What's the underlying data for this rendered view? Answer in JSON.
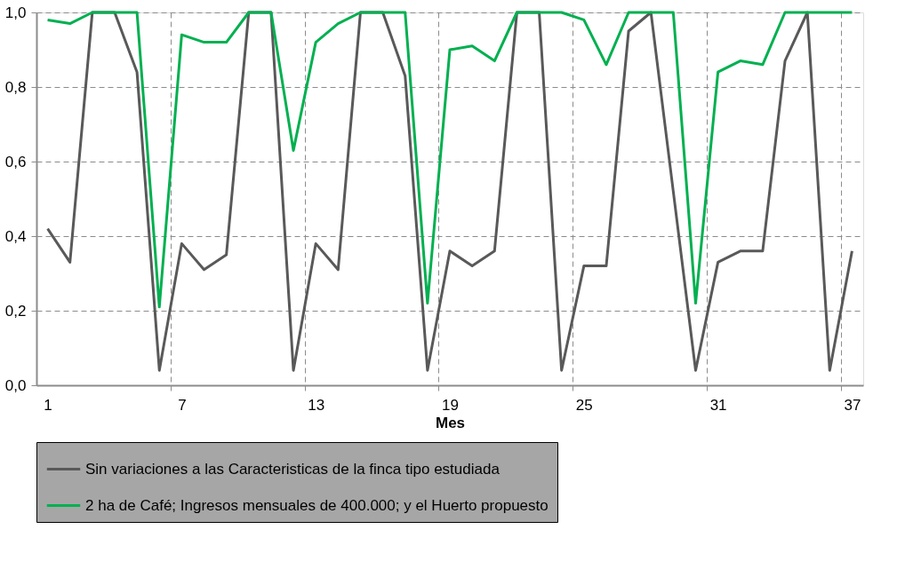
{
  "chart_data": {
    "type": "line",
    "xlabel": "Mes",
    "x": [
      1,
      2,
      3,
      4,
      5,
      6,
      7,
      8,
      9,
      10,
      11,
      12,
      13,
      14,
      15,
      16,
      17,
      18,
      19,
      20,
      21,
      22,
      23,
      24,
      25,
      26,
      27,
      28,
      29,
      30,
      31,
      32,
      33,
      34,
      35,
      36,
      37
    ],
    "xlim": [
      0.5,
      37.5
    ],
    "xticks": [
      1,
      7,
      13,
      19,
      25,
      31,
      37,
      {
        "value": 6.5,
        "label": null
      },
      {
        "value": 12.5,
        "label": null
      },
      {
        "value": 18.5,
        "label": null
      },
      {
        "value": 24.5,
        "label": null
      },
      {
        "value": 30.5,
        "label": null
      },
      {
        "value": 36.5,
        "label": null
      }
    ],
    "ylim": [
      0,
      1
    ],
    "yticks": [
      {
        "value": 0,
        "label": "0,0"
      },
      {
        "value": 0.2,
        "label": "0,2"
      },
      {
        "value": 0.4,
        "label": "0,4"
      },
      {
        "value": 0.6,
        "label": "0,6"
      },
      {
        "value": 0.8,
        "label": "0,8"
      },
      {
        "value": 1,
        "label": "1,0"
      }
    ],
    "grid": true,
    "legend": "bottom",
    "marker": "none",
    "line_style": "solid",
    "series": [
      {
        "name": "Sin variaciones a las Caracteristicas de la finca tipo estudiada",
        "color": "#595959",
        "values": [
          0.42,
          0.33,
          1.0,
          1.0,
          0.84,
          0.04,
          0.38,
          0.31,
          0.35,
          1.0,
          1.0,
          0.04,
          0.38,
          0.31,
          1.0,
          1.0,
          0.83,
          0.04,
          0.36,
          0.32,
          0.36,
          1.0,
          1.0,
          0.04,
          0.32,
          0.32,
          0.95,
          1.0,
          0.52,
          0.04,
          0.33,
          0.36,
          0.36,
          0.87,
          1.0,
          0.04,
          0.36
        ]
      },
      {
        "name": "2 ha de Café; Ingresos mensuales de 400.000; y el Huerto propuesto",
        "color": "#00b050",
        "values": [
          0.98,
          0.97,
          1.0,
          1.0,
          1.0,
          0.21,
          0.94,
          0.92,
          0.92,
          1.0,
          1.0,
          0.63,
          0.92,
          0.97,
          1.0,
          1.0,
          1.0,
          0.22,
          0.9,
          0.91,
          0.87,
          1.0,
          1.0,
          1.0,
          0.98,
          0.86,
          1.0,
          1.0,
          1.0,
          0.22,
          0.84,
          0.87,
          0.86,
          1.0,
          1.0,
          1.0,
          1.0
        ]
      }
    ]
  }
}
